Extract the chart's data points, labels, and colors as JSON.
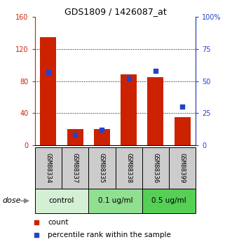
{
  "title": "GDS1809 / 1426087_at",
  "samples": [
    "GSM88334",
    "GSM88337",
    "GSM88335",
    "GSM88338",
    "GSM88336",
    "GSM88399"
  ],
  "count": [
    135,
    20,
    20,
    88,
    85,
    35
  ],
  "percentile": [
    57,
    8,
    12,
    52,
    58,
    30
  ],
  "bar_color": "#cc2200",
  "dot_color": "#2244cc",
  "left_ylim": [
    0,
    160
  ],
  "right_ylim": [
    0,
    100
  ],
  "left_yticks": [
    0,
    40,
    80,
    120,
    160
  ],
  "right_yticks": [
    0,
    25,
    50,
    75,
    100
  ],
  "right_yticklabels": [
    "0",
    "25",
    "50",
    "75",
    "100%"
  ],
  "left_tick_color": "#cc2200",
  "right_tick_color": "#2244cc",
  "dose_label": "dose",
  "legend_count": "count",
  "legend_percentile": "percentile rank within the sample",
  "background_color": "#ffffff",
  "sample_box_color": "#cccccc",
  "group_colors": [
    "#d4f0d4",
    "#90e090",
    "#55d055"
  ],
  "group_labels": [
    "control",
    "0.1 ug/ml",
    "0.5 ug/ml"
  ],
  "group_ranges": [
    [
      -0.5,
      1.5
    ],
    [
      1.5,
      3.5
    ],
    [
      3.5,
      5.5
    ]
  ]
}
